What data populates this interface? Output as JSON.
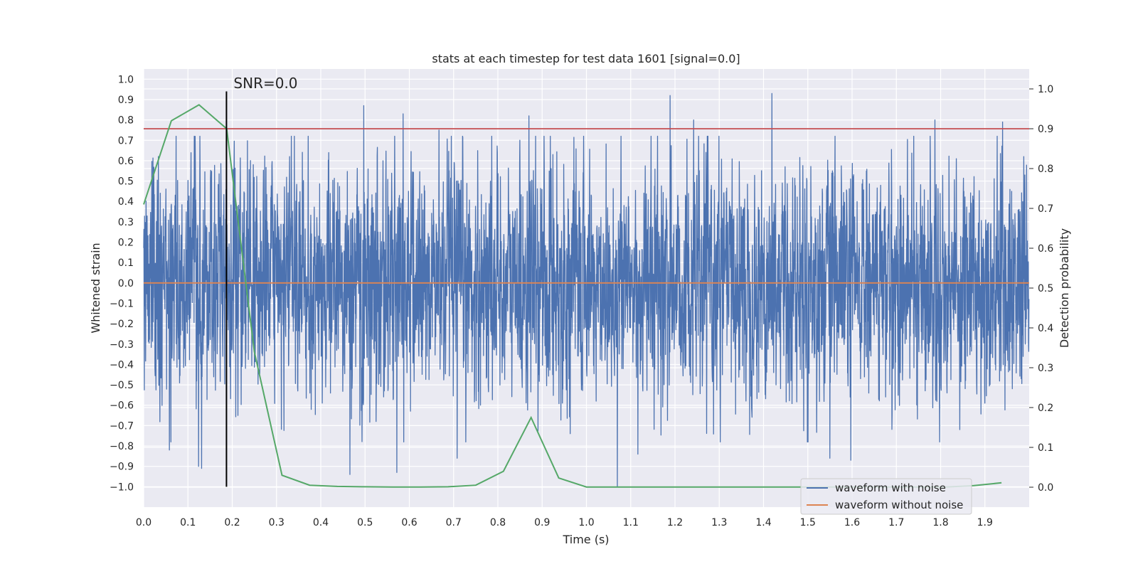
{
  "chart_data": {
    "type": "line",
    "title": "stats at each timestep for test data 1601 [signal=0.0]",
    "xlabel": "Time (s)",
    "ylabel": "Whitened strain",
    "y2label": "Detection probability",
    "xlim": [
      0.0,
      2.0
    ],
    "ylim": [
      -1.1,
      1.05
    ],
    "y2lim": [
      -0.05,
      1.05
    ],
    "xticks": [
      "0.0",
      "0.1",
      "0.2",
      "0.3",
      "0.4",
      "0.5",
      "0.6",
      "0.7",
      "0.8",
      "0.9",
      "1.0",
      "1.1",
      "1.2",
      "1.3",
      "1.4",
      "1.5",
      "1.6",
      "1.7",
      "1.8",
      "1.9"
    ],
    "yticks": [
      "1.0",
      "0.9",
      "0.8",
      "0.7",
      "0.6",
      "0.5",
      "0.4",
      "0.3",
      "0.2",
      "0.1",
      "0.0",
      "−0.1",
      "−0.2",
      "−0.3",
      "−0.4",
      "−0.5",
      "−0.6",
      "−0.7",
      "−0.8",
      "−0.9",
      "−1.0"
    ],
    "y2ticks": [
      "1.0",
      "0.9",
      "0.8",
      "0.7",
      "0.6",
      "0.5",
      "0.4",
      "0.3",
      "0.2",
      "0.1",
      "0.0"
    ],
    "grid": true,
    "annotation": {
      "text": "SNR=0.0",
      "x": 0.187
    },
    "threshold": {
      "y2": 0.9,
      "color": "#c44e52"
    },
    "marker_line": {
      "x": 0.187,
      "y_range": [
        -1.0,
        0.94
      ],
      "color": "#000000"
    },
    "series": [
      {
        "name": "waveform with noise",
        "color": "#4c72b0",
        "axis": "left",
        "kind": "noise",
        "sample_rate": 2048,
        "duration": 2.0,
        "spikes": [
          [
            0.033,
            0.62
          ],
          [
            0.058,
            -0.82
          ],
          [
            0.124,
            -0.9
          ],
          [
            0.131,
            -0.91
          ],
          [
            0.213,
            -0.65
          ],
          [
            0.497,
            0.87
          ],
          [
            0.466,
            -0.94
          ],
          [
            0.572,
            -0.93
          ],
          [
            0.586,
            0.83
          ],
          [
            0.708,
            -0.86
          ],
          [
            0.87,
            0.82
          ],
          [
            0.667,
            0.75
          ],
          [
            1.07,
            -1.0
          ],
          [
            1.116,
            -0.84
          ],
          [
            1.189,
            0.92
          ],
          [
            1.242,
            0.8
          ],
          [
            1.419,
            0.93
          ],
          [
            1.55,
            -0.86
          ],
          [
            1.597,
            -0.87
          ],
          [
            1.787,
            0.8
          ],
          [
            1.798,
            -0.78
          ],
          [
            1.94,
            0.79
          ]
        ]
      },
      {
        "name": "waveform without noise",
        "color": "#dd8452",
        "axis": "left",
        "x": [
          0.0,
          2.0
        ],
        "y": [
          0.0,
          0.0
        ]
      },
      {
        "name": "Detection probability",
        "color": "#55a868",
        "axis": "right",
        "x": [
          0.0,
          0.0625,
          0.125,
          0.1875,
          0.25,
          0.3125,
          0.375,
          0.4375,
          0.5,
          0.5625,
          0.625,
          0.6875,
          0.75,
          0.8125,
          0.875,
          0.9375,
          1.0,
          1.0625,
          1.125,
          1.1875,
          1.25,
          1.3125,
          1.375,
          1.4375,
          1.5,
          1.5625,
          1.625,
          1.6875,
          1.75,
          1.8125,
          1.875,
          1.9375
        ],
        "y": [
          0.71,
          0.92,
          0.96,
          0.9,
          0.34,
          0.03,
          0.005,
          0.002,
          0.001,
          0.0005,
          0.0005,
          0.001,
          0.005,
          0.04,
          0.175,
          0.023,
          0.0005,
          0.0005,
          0.0005,
          0.0005,
          0.0005,
          0.0005,
          0.0005,
          0.0005,
          0.0005,
          0.0005,
          0.0005,
          0.0005,
          0.0005,
          0.0005,
          0.004,
          0.011
        ]
      }
    ],
    "legend": {
      "placement": "lower-right",
      "entries": [
        {
          "label": "waveform with noise",
          "color": "#4c72b0"
        },
        {
          "label": "waveform without noise",
          "color": "#dd8452"
        }
      ]
    }
  }
}
